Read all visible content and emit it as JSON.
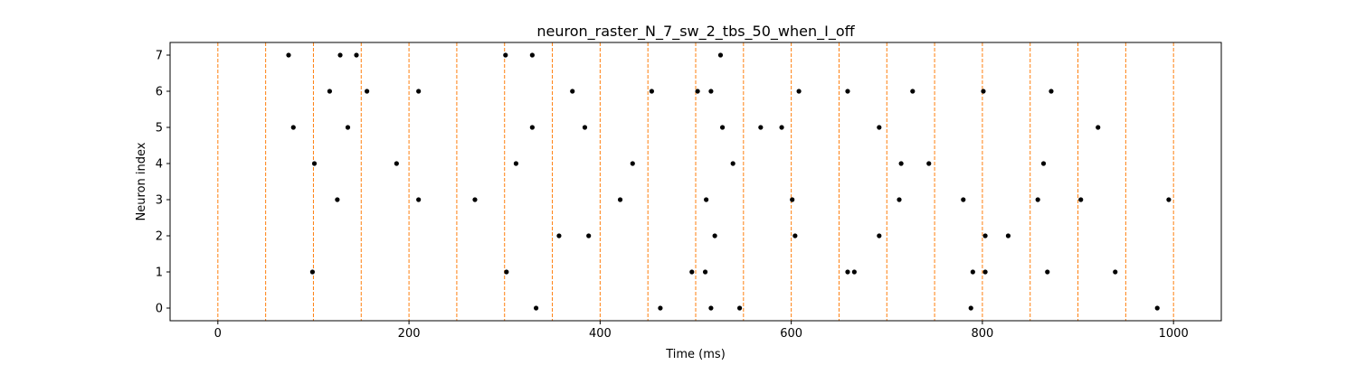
{
  "chart_data": {
    "type": "scatter",
    "title": "neuron_raster_N_7_sw_2_tbs_50_when_I_off",
    "xlabel": "Time (ms)",
    "ylabel": "Neuron index",
    "xlim": [
      -50,
      1050
    ],
    "ylim": [
      -0.35,
      7.35
    ],
    "xticks": [
      0,
      200,
      400,
      600,
      800,
      1000
    ],
    "yticks": [
      0,
      1,
      2,
      3,
      4,
      5,
      6,
      7
    ],
    "grid": false,
    "marker_color": "#000000",
    "vline_color": "#ff7f0e",
    "vlines_x": [
      0,
      50,
      100,
      150,
      200,
      250,
      300,
      350,
      400,
      450,
      500,
      550,
      600,
      650,
      700,
      750,
      800,
      850,
      900,
      950,
      1000
    ],
    "spikes": [
      {
        "neuron": 7,
        "times": [
          74,
          128,
          145,
          301,
          329,
          526
        ]
      },
      {
        "neuron": 6,
        "times": [
          117,
          156,
          210,
          371,
          454,
          502,
          516,
          608,
          659,
          727,
          801,
          872
        ]
      },
      {
        "neuron": 5,
        "times": [
          79,
          136,
          329,
          384,
          528,
          568,
          590,
          692,
          921
        ]
      },
      {
        "neuron": 4,
        "times": [
          101,
          187,
          312,
          434,
          539,
          715,
          744,
          864
        ]
      },
      {
        "neuron": 3,
        "times": [
          125,
          210,
          269,
          421,
          511,
          601,
          713,
          780,
          858,
          903,
          995
        ]
      },
      {
        "neuron": 2,
        "times": [
          357,
          388,
          520,
          604,
          692,
          803,
          827
        ]
      },
      {
        "neuron": 1,
        "times": [
          99,
          302,
          496,
          510,
          659,
          666,
          790,
          803,
          868,
          939
        ]
      },
      {
        "neuron": 0,
        "times": [
          333,
          463,
          516,
          546,
          788,
          983
        ]
      }
    ]
  }
}
